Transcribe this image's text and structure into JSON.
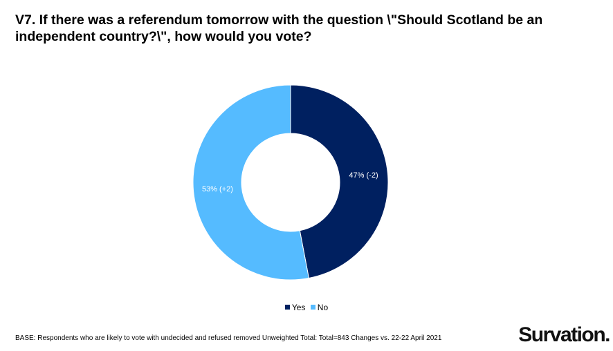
{
  "chart_data": {
    "type": "pie",
    "donut": true,
    "title": "V7. If there was a referendum tomorrow with the question \\\"Should Scotland be an independent country?\\\", how would you vote?",
    "slices": [
      {
        "name": "Yes",
        "value": 47,
        "label": "47% (-2)",
        "color": "#002060"
      },
      {
        "name": "No",
        "value": 53,
        "label": "53% (+2)",
        "color": "#55BBFF"
      }
    ],
    "legend_position": "bottom"
  },
  "footnote": "BASE: Respondents who are likely to vote with undecided and refused removed Unweighted Total: Total=843 Changes vs. 22-22 April 2021",
  "brand": "Survation."
}
